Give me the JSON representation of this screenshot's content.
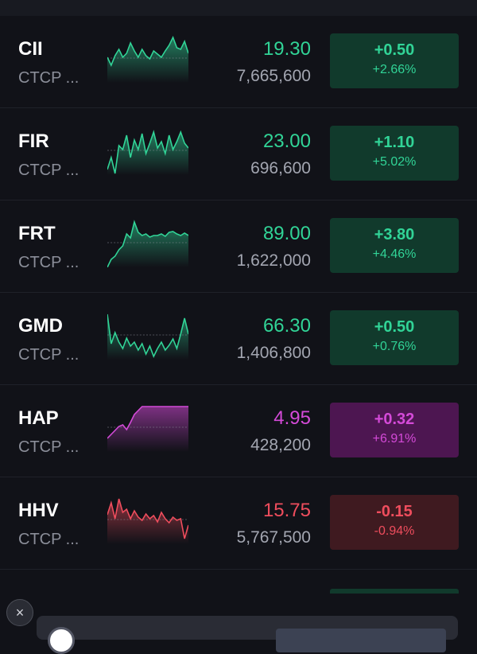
{
  "rows": [
    {
      "symbol": "CII",
      "company": "CTCP ...",
      "price": "19.30",
      "volume": "7,665,600",
      "change": "+0.50",
      "change_pct": "+2.66%",
      "trend": "up",
      "spark": [
        30,
        40,
        28,
        20,
        30,
        25,
        12,
        22,
        30,
        20,
        28,
        32,
        22,
        26,
        30,
        22,
        15,
        5,
        18,
        20,
        10,
        25
      ]
    },
    {
      "symbol": "FIR",
      "company": "CTCP ...",
      "price": "23.00",
      "volume": "696,600",
      "change": "+1.10",
      "change_pct": "+5.02%",
      "trend": "up",
      "spark": [
        55,
        40,
        60,
        25,
        30,
        12,
        40,
        18,
        30,
        10,
        35,
        22,
        8,
        28,
        20,
        35,
        12,
        30,
        20,
        8,
        22,
        28
      ]
    },
    {
      "symbol": "FRT",
      "company": "CTCP ...",
      "price": "89.00",
      "volume": "1,622,000",
      "change": "+3.80",
      "change_pct": "+4.46%",
      "trend": "up",
      "spark": [
        62,
        52,
        48,
        40,
        35,
        20,
        25,
        5,
        18,
        22,
        20,
        24,
        22,
        22,
        20,
        23,
        18,
        17,
        20,
        22,
        19,
        22
      ]
    },
    {
      "symbol": "GMD",
      "company": "CTCP ...",
      "price": "66.30",
      "volume": "1,406,800",
      "change": "+0.50",
      "change_pct": "+0.76%",
      "trend": "up",
      "spark": [
        5,
        42,
        28,
        40,
        48,
        35,
        45,
        40,
        50,
        42,
        55,
        45,
        58,
        48,
        40,
        50,
        44,
        36,
        48,
        30,
        10,
        30
      ]
    },
    {
      "symbol": "HAP",
      "company": "CTCP ...",
      "price": "4.95",
      "volume": "428,200",
      "change": "+0.32",
      "change_pct": "+6.91%",
      "trend": "ceil",
      "spark": [
        45,
        40,
        35,
        30,
        28,
        34,
        25,
        15,
        10,
        5,
        5,
        5,
        5,
        5,
        5,
        5,
        5,
        5,
        5,
        5,
        5,
        5
      ]
    },
    {
      "symbol": "HHV",
      "company": "CTCP ...",
      "price": "15.75",
      "volume": "5,767,500",
      "change": "-0.15",
      "change_pct": "-0.94%",
      "trend": "down",
      "spark": [
        25,
        10,
        30,
        5,
        22,
        18,
        30,
        20,
        28,
        32,
        24,
        30,
        26,
        34,
        22,
        30,
        35,
        28,
        32,
        30,
        55,
        38
      ]
    }
  ],
  "colors": {
    "up": "#31d497",
    "ceil": "#d44ad8",
    "down": "#ef4d5d",
    "background": "#111218"
  },
  "overlay": {
    "close_icon": "×"
  }
}
